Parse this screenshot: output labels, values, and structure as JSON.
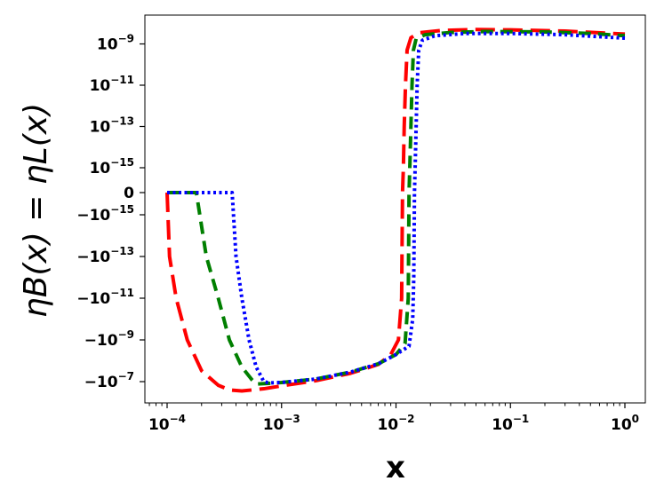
{
  "chart_data": {
    "type": "line",
    "title": "",
    "xlabel": "x",
    "ylabel": "ηB(x) = ηL(x)",
    "xscale": "log",
    "yscale": "symlog",
    "xlim": [
      6e-05,
      1.5
    ],
    "x_ticks": [
      {
        "value": 0.0001,
        "base": "10",
        "exp": "−4"
      },
      {
        "value": 0.001,
        "base": "10",
        "exp": "−3"
      },
      {
        "value": 0.01,
        "base": "10",
        "exp": "−2"
      },
      {
        "value": 0.1,
        "base": "10",
        "exp": "−1"
      },
      {
        "value": 1,
        "base": "10",
        "exp": "0"
      }
    ],
    "y_ticks": [
      {
        "value": 1e-09,
        "base": "10",
        "exp": "−9"
      },
      {
        "value": 1e-11,
        "base": "10",
        "exp": "−11"
      },
      {
        "value": 1e-13,
        "base": "10",
        "exp": "−13"
      },
      {
        "value": 1e-15,
        "base": "10",
        "exp": "−15"
      },
      {
        "value": 0,
        "base": "0",
        "exp": ""
      },
      {
        "value": -1e-15,
        "base": "−10",
        "exp": "−15"
      },
      {
        "value": -1e-13,
        "base": "−10",
        "exp": "−13"
      },
      {
        "value": -1e-11,
        "base": "−10",
        "exp": "−11"
      },
      {
        "value": -1e-09,
        "base": "−10",
        "exp": "−9"
      },
      {
        "value": -1e-07,
        "base": "−10",
        "exp": "−7"
      }
    ],
    "grid": false,
    "legend": "none",
    "series": [
      {
        "color": "#ff0000",
        "style": "long-dash",
        "points": [
          [
            0.0001,
            0
          ],
          [
            0.0001,
            -1e-16
          ],
          [
            0.000105,
            -1e-13
          ],
          [
            0.00012,
            -1e-11
          ],
          [
            0.00015,
            -1e-09
          ],
          [
            0.0002,
            -3e-08
          ],
          [
            0.00028,
            -1.5e-07
          ],
          [
            0.00035,
            -2.5e-07
          ],
          [
            0.00045,
            -2.8e-07
          ],
          [
            0.0007,
            -2.2e-07
          ],
          [
            0.001,
            -1.6e-07
          ],
          [
            0.002,
            -9e-08
          ],
          [
            0.004,
            -4e-08
          ],
          [
            0.007,
            -1.5e-08
          ],
          [
            0.009,
            -5e-09
          ],
          [
            0.0105,
            -1e-09
          ],
          [
            0.0112,
            -1e-11
          ],
          [
            0.0114,
            0
          ],
          [
            0.0116,
            1e-15
          ],
          [
            0.0118,
            1e-13
          ],
          [
            0.0121,
            1e-11
          ],
          [
            0.0125,
            5e-10
          ],
          [
            0.0135,
            2e-09
          ],
          [
            0.016,
            3.5e-09
          ],
          [
            0.025,
            4.5e-09
          ],
          [
            0.05,
            5e-09
          ],
          [
            0.1,
            4.8e-09
          ],
          [
            0.3,
            4.2e-09
          ],
          [
            1,
            3e-09
          ]
        ]
      },
      {
        "color": "#007f00",
        "style": "dash",
        "points": [
          [
            0.0001,
            0
          ],
          [
            0.00016,
            0
          ],
          [
            0.00018,
            -1e-16
          ],
          [
            0.00022,
            -1e-13
          ],
          [
            0.00028,
            -1e-11
          ],
          [
            0.00035,
            -1e-09
          ],
          [
            0.00045,
            -2e-08
          ],
          [
            0.00055,
            -8e-08
          ],
          [
            0.0006,
            -1.3e-07
          ],
          [
            0.0008,
            -1.2e-07
          ],
          [
            0.001,
            -1.1e-07
          ],
          [
            0.002,
            -7.5e-08
          ],
          [
            0.004,
            -3.5e-08
          ],
          [
            0.007,
            -1.4e-08
          ],
          [
            0.01,
            -5e-09
          ],
          [
            0.012,
            -1.5e-09
          ],
          [
            0.0128,
            -1e-11
          ],
          [
            0.013,
            0
          ],
          [
            0.0132,
            1e-15
          ],
          [
            0.0135,
            1e-13
          ],
          [
            0.0138,
            1e-11
          ],
          [
            0.0142,
            5e-10
          ],
          [
            0.015,
            1.8e-09
          ],
          [
            0.018,
            2.8e-09
          ],
          [
            0.03,
            3.6e-09
          ],
          [
            0.06,
            4e-09
          ],
          [
            0.2,
            3.8e-09
          ],
          [
            0.5,
            3.2e-09
          ],
          [
            1,
            2.5e-09
          ]
        ]
      },
      {
        "color": "#0000ff",
        "style": "dotted",
        "points": [
          [
            0.0001,
            0
          ],
          [
            0.00035,
            0
          ],
          [
            0.00037,
            -1e-16
          ],
          [
            0.0004,
            -1e-13
          ],
          [
            0.00045,
            -1e-11
          ],
          [
            0.00052,
            -1e-09
          ],
          [
            0.0006,
            -2e-08
          ],
          [
            0.0007,
            -1e-07
          ],
          [
            0.00075,
            -1.1e-07
          ],
          [
            0.0008,
            -1.15e-07
          ],
          [
            0.001,
            -1.1e-07
          ],
          [
            0.002,
            -7.5e-08
          ],
          [
            0.004,
            -3.5e-08
          ],
          [
            0.007,
            -1.4e-08
          ],
          [
            0.01,
            -5e-09
          ],
          [
            0.013,
            -2e-09
          ],
          [
            0.014,
            -1e-10
          ],
          [
            0.0143,
            -1e-12
          ],
          [
            0.0145,
            0
          ],
          [
            0.0147,
            1e-15
          ],
          [
            0.015,
            1e-13
          ],
          [
            0.0153,
            1e-11
          ],
          [
            0.0158,
            5e-10
          ],
          [
            0.017,
            1.5e-09
          ],
          [
            0.022,
            2.5e-09
          ],
          [
            0.04,
            3.2e-09
          ],
          [
            0.1,
            3.2e-09
          ],
          [
            0.3,
            2.8e-09
          ],
          [
            1,
            1.9e-09
          ]
        ]
      }
    ]
  }
}
